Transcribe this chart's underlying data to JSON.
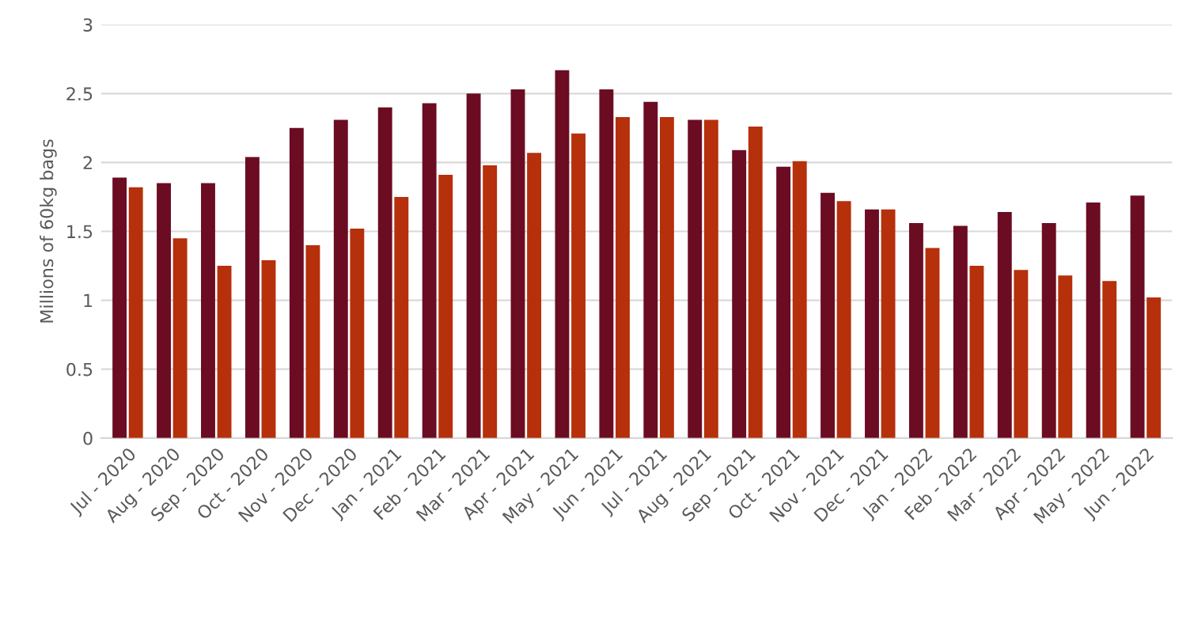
{
  "chart_data": {
    "type": "bar",
    "ylabel": "Millions of 60kg bags",
    "categories": [
      "Jul - 2020",
      "Aug - 2020",
      "Sep - 2020",
      "Oct - 2020",
      "Nov - 2020",
      "Dec - 2020",
      "Jan - 2021",
      "Feb - 2021",
      "Mar - 2021",
      "Apr - 2021",
      "May - 2021",
      "Jun - 2021",
      "Jul - 2021",
      "Aug - 2021",
      "Sep - 2021",
      "Oct - 2021",
      "Nov - 2021",
      "Dec - 2021",
      "Jan - 2022",
      "Feb - 2022",
      "Mar - 2022",
      "Apr - 2022",
      "May - 2022",
      "Jun - 2022"
    ],
    "series": [
      {
        "color": "#6b0c22",
        "values": [
          1.89,
          1.85,
          1.85,
          2.04,
          2.25,
          2.31,
          2.4,
          2.43,
          2.5,
          2.53,
          2.67,
          2.53,
          2.44,
          2.31,
          2.09,
          1.97,
          1.78,
          1.66,
          1.56,
          1.54,
          1.64,
          1.56,
          1.71,
          1.76
        ]
      },
      {
        "color": "#b5300b",
        "values": [
          1.82,
          1.45,
          1.25,
          1.29,
          1.4,
          1.52,
          1.75,
          1.91,
          1.98,
          2.07,
          2.21,
          2.33,
          2.33,
          2.31,
          2.26,
          2.01,
          1.72,
          1.66,
          1.38,
          1.25,
          1.22,
          1.18,
          1.14,
          1.02
        ]
      }
    ],
    "ylim": [
      0,
      3
    ],
    "yticks": [
      0,
      0.5,
      1,
      1.5,
      2,
      2.5,
      3
    ],
    "grid": "y"
  }
}
